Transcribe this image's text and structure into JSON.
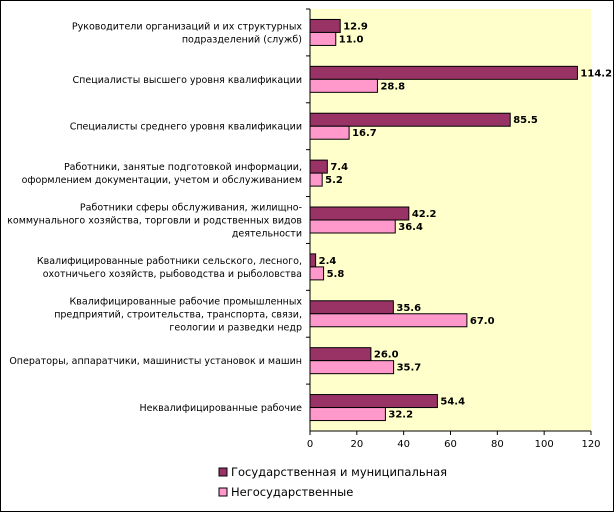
{
  "chart_data": {
    "type": "bar",
    "orientation": "horizontal",
    "categories": [
      [
        "Руководители организаций и их структурных",
        "подразделений (служб)"
      ],
      [
        "Специалисты высшего уровня квалификации"
      ],
      [
        "Специалисты среднего уровня квалификации"
      ],
      [
        "Работники, занятые подготовкой информации,",
        "оформлением  документации, учетом и обслуживанием"
      ],
      [
        "Работники сферы обслуживания, жилищно-",
        "коммунального хозяйства, торговли и родственных видов",
        "деятельности"
      ],
      [
        "Квалифицированные работники сельского, лесного,",
        "охотничьего хозяйств, рыбоводства и рыболовства"
      ],
      [
        "Квалифицированные рабочие промышленных",
        "предприятий, строительства, транспорта, связи,",
        "геологии и разведки недр"
      ],
      [
        "Операторы, аппаратчики, машинисты установок и машин"
      ],
      [
        "Неквалифицированные рабочие"
      ]
    ],
    "series": [
      {
        "name": "Государственная и муниципальная",
        "color": "#993366",
        "values": [
          12.9,
          114.2,
          85.5,
          7.4,
          42.2,
          2.4,
          35.6,
          26.0,
          54.4
        ],
        "labels": [
          "12.9",
          "114.2",
          "85.5",
          "7.4",
          "42.2",
          "2.4",
          "35.6",
          "26.0",
          "54.4"
        ]
      },
      {
        "name": "Негосударственные",
        "color": "#ff99cc",
        "values": [
          11.0,
          28.8,
          16.7,
          5.2,
          36.4,
          5.8,
          67.0,
          35.7,
          32.2
        ],
        "labels": [
          "11.0",
          "28.8",
          "16.7",
          "5.2",
          "36.4",
          "5.8",
          "67.0",
          "35.7",
          "32.2"
        ]
      }
    ],
    "xlim": [
      0,
      120
    ],
    "xticks": [
      "0",
      "20",
      "40",
      "60",
      "80",
      "100",
      "120"
    ],
    "grid": false,
    "plot_background": "#ffffcc",
    "legend_position": "bottom"
  }
}
